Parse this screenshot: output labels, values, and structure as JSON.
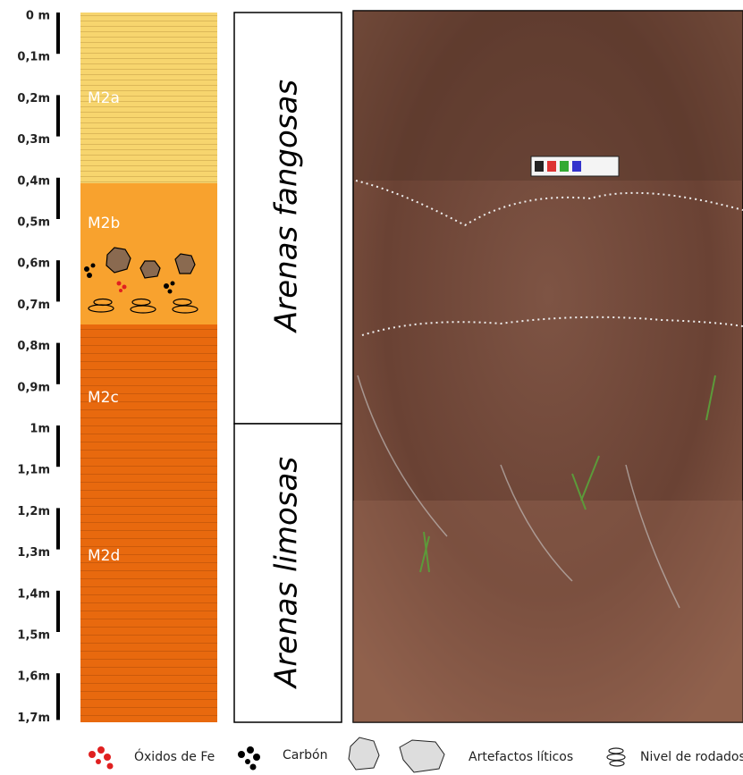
{
  "depth_scale": {
    "labels": [
      "0 m",
      "0,1m",
      "0,2m",
      "0,3m",
      "0,4m",
      "0,5m",
      "0,6m",
      "0,7m",
      "0,8m",
      "0,9m",
      "1m",
      "1,1m",
      "1,2m",
      "1,3m",
      "1,4m",
      "1,5m",
      "1,6m",
      "1,7m"
    ]
  },
  "units": [
    {
      "label": "M2a"
    },
    {
      "label": "M2b"
    },
    {
      "label": "M2c"
    },
    {
      "label": "M2d"
    }
  ],
  "facies": [
    {
      "label": "Arenas fangosas"
    },
    {
      "label": "Arenas limosas"
    }
  ],
  "legend": [
    {
      "label": "Óxidos de Fe"
    },
    {
      "label": "Carbón"
    },
    {
      "label": "Artefactos líticos"
    },
    {
      "label": "Nivel de rodados"
    }
  ]
}
